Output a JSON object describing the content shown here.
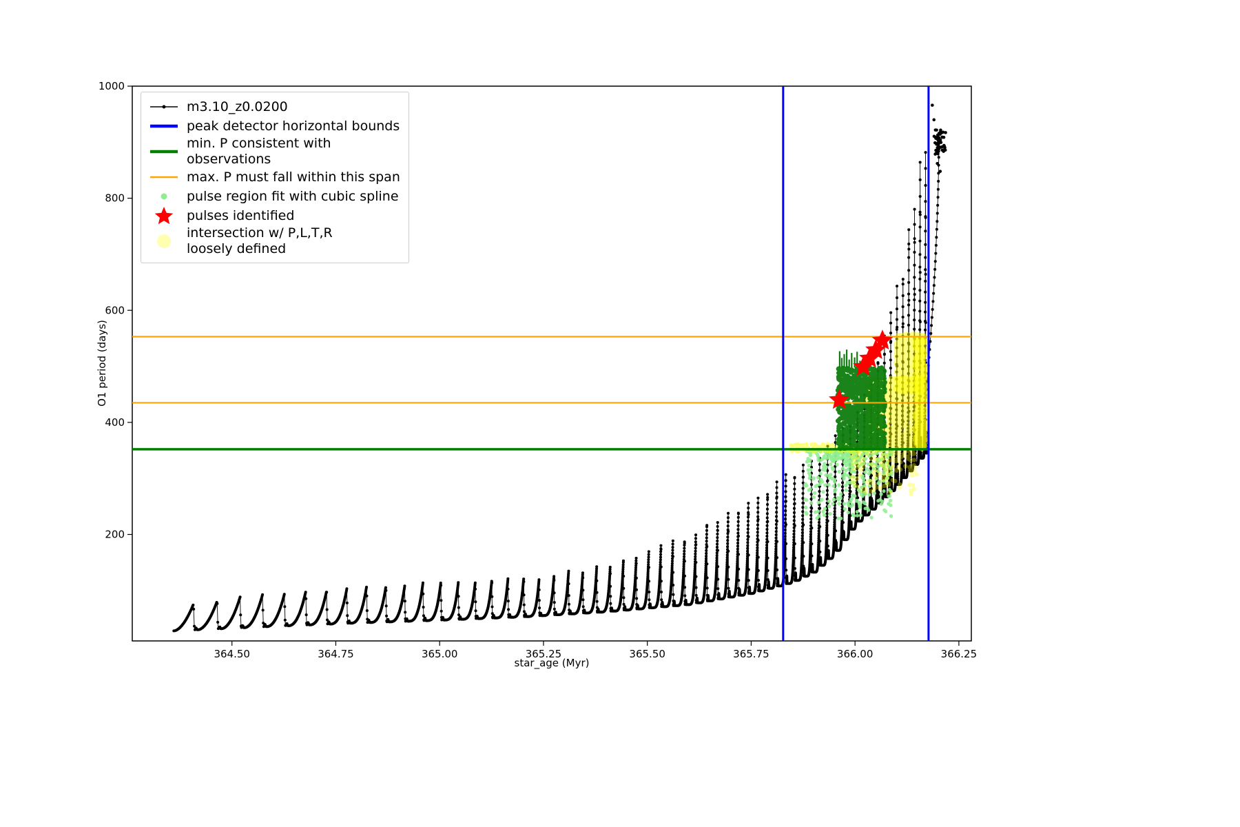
{
  "chart_data": {
    "type": "line",
    "title": "",
    "xlabel": "star_age (Myr)",
    "ylabel": "O1 period (days)",
    "xlim": [
      364.26,
      366.28
    ],
    "ylim": [
      10,
      1000
    ],
    "x_ticks": [
      {
        "v": 364.5,
        "label": "364.50"
      },
      {
        "v": 364.75,
        "label": "364.75"
      },
      {
        "v": 365.0,
        "label": "365.00"
      },
      {
        "v": 365.25,
        "label": "365.25"
      },
      {
        "v": 365.5,
        "label": "365.50"
      },
      {
        "v": 365.75,
        "label": "365.75"
      },
      {
        "v": 366.0,
        "label": "366.00"
      },
      {
        "v": 366.25,
        "label": "366.25"
      }
    ],
    "y_ticks": [
      {
        "v": 200,
        "label": "200"
      },
      {
        "v": 400,
        "label": "400"
      },
      {
        "v": 600,
        "label": "600"
      },
      {
        "v": 800,
        "label": "800"
      },
      {
        "v": 1000,
        "label": "1000"
      }
    ],
    "series": {
      "name": "m3.10_z0.0200",
      "color": "#000000",
      "description": "pulsating sawtooth light-curve of O1 period vs star age; pulse amplitude and frequency grow with age ending in steep rise",
      "pulse_model": {
        "start": 364.36,
        "end": 366.17,
        "period_start": 0.058,
        "period_ratio": 0.975,
        "rise_fraction": 0.82,
        "base_envelope": [
          [
            364.36,
            28
          ],
          [
            364.6,
            36
          ],
          [
            364.8,
            42
          ],
          [
            365.0,
            47
          ],
          [
            365.2,
            53
          ],
          [
            365.4,
            62
          ],
          [
            365.6,
            75
          ],
          [
            365.75,
            95
          ],
          [
            365.85,
            115
          ],
          [
            365.9,
            133
          ],
          [
            365.95,
            165
          ],
          [
            366.0,
            218
          ],
          [
            366.05,
            250
          ],
          [
            366.1,
            286
          ],
          [
            366.14,
            320
          ],
          [
            366.17,
            345
          ]
        ],
        "peak_envelope": [
          [
            364.4,
            75
          ],
          [
            364.6,
            95
          ],
          [
            364.8,
            104
          ],
          [
            365.0,
            114
          ],
          [
            365.25,
            124
          ],
          [
            365.4,
            145
          ],
          [
            365.5,
            172
          ],
          [
            365.6,
            200
          ],
          [
            365.7,
            237
          ],
          [
            365.8,
            292
          ],
          [
            365.85,
            312
          ],
          [
            365.9,
            341
          ],
          [
            365.95,
            368
          ],
          [
            366.0,
            420
          ],
          [
            366.05,
            500
          ],
          [
            366.08,
            580
          ],
          [
            366.1,
            625
          ],
          [
            366.12,
            700
          ],
          [
            366.14,
            780
          ],
          [
            366.16,
            860
          ],
          [
            366.17,
            905
          ]
        ]
      },
      "final_rise": {
        "x": [
          366.168,
          366.202
        ],
        "y": [
          430,
          916
        ],
        "n": 34
      },
      "terminal_cluster": {
        "x": [
          366.19,
          366.218
        ],
        "y": [
          878,
          922
        ],
        "n": 48
      },
      "stray_points": [
        [
          366.186,
          966
        ],
        [
          366.19,
          940
        ],
        [
          366.198,
          862
        ],
        [
          366.205,
          848
        ]
      ]
    },
    "peak_detector_bounds": {
      "label": "peak detector horizontal bounds",
      "color": "#0000ff",
      "width": 3,
      "x_values": [
        365.827,
        366.177
      ]
    },
    "min_period_line": {
      "label": "min. P consistent with observations",
      "color": "#008000",
      "width": 3.5,
      "y_value": 352
    },
    "max_period_span": {
      "label": "max. P must fall within this span",
      "color": "#ffa500",
      "width": 2.2,
      "y_values": [
        435,
        553
      ]
    },
    "pulse_region_scatter": {
      "label": "pulse region fit with cubic spline",
      "color": "#90ee90",
      "regions": [
        {
          "x": [
            365.88,
            366.09
          ],
          "y": [
            228,
            351
          ],
          "n": 330,
          "r": 2.6,
          "alpha": 0.9,
          "bias": "top"
        },
        {
          "x": [
            365.93,
            366.005
          ],
          "y": [
            330,
            351
          ],
          "n": 90,
          "r": 2.6,
          "alpha": 0.9
        }
      ]
    },
    "green_cluster": {
      "color": "#0e7d0e",
      "region": {
        "x": [
          365.958,
          366.072
        ],
        "y": [
          353,
          498
        ],
        "n": 780,
        "r": 3.4,
        "alpha": 0.95
      },
      "comb": {
        "width": 2.2,
        "lines": [
          [
            365.963,
            498,
            527
          ],
          [
            365.968,
            498,
            515
          ],
          [
            365.974,
            498,
            522
          ],
          [
            365.98,
            498,
            530
          ],
          [
            365.986,
            498,
            512
          ],
          [
            365.992,
            498,
            524
          ],
          [
            365.999,
            498,
            516
          ],
          [
            366.005,
            498,
            526
          ],
          [
            366.012,
            498,
            510
          ]
        ]
      }
    },
    "intersection_scatter": {
      "label": "intersection w/ P,L,T,R\nloosely defined",
      "color": "#ffff00",
      "regions": [
        {
          "x": [
            366.03,
            366.168
          ],
          "y": [
            353,
            478
          ],
          "n": 540,
          "r": 5.0,
          "alpha": 0.5
        },
        {
          "x": [
            366.1,
            366.168
          ],
          "y": [
            455,
            556
          ],
          "n": 310,
          "r": 5.0,
          "alpha": 0.5
        },
        {
          "x": [
            366.145,
            366.168
          ],
          "y": [
            353,
            556
          ],
          "n": 190,
          "r": 4.5,
          "alpha": 0.6
        },
        {
          "x": [
            365.99,
            366.15
          ],
          "y": [
            272,
            353
          ],
          "n": 180,
          "r": 3.2,
          "alpha": 0.35,
          "bias": "top"
        },
        {
          "x": [
            365.845,
            366.03
          ],
          "y": [
            347,
            361
          ],
          "n": 130,
          "r": 3.0,
          "alpha": 0.5
        }
      ]
    },
    "pulses_identified": {
      "label": "pulses identified",
      "color": "#ff0000",
      "marker": "star",
      "points": [
        [
          365.962,
          440
        ],
        [
          366.02,
          499
        ],
        [
          366.035,
          514
        ],
        [
          366.05,
          529
        ],
        [
          366.066,
          546
        ]
      ]
    }
  },
  "legend": {
    "items": [
      {
        "label": "m3.10_z0.0200",
        "swatch": "line-marker",
        "color": "#000000"
      },
      {
        "label": "peak detector horizontal bounds",
        "swatch": "thick-line",
        "color": "#0000ff"
      },
      {
        "label": "min. P consistent with observations",
        "swatch": "thick-line",
        "color": "#008000"
      },
      {
        "label": "max. P must fall within this span",
        "swatch": "line",
        "color": "#ffa500"
      },
      {
        "label": "pulse region fit with cubic spline",
        "swatch": "small-dot",
        "color": "#90ee90"
      },
      {
        "label": "pulses identified",
        "swatch": "star",
        "color": "#ff0000"
      },
      {
        "label": "intersection w/ P,L,T,R\nloosely defined",
        "swatch": "big-dot",
        "color": "#ffffb0"
      }
    ]
  }
}
